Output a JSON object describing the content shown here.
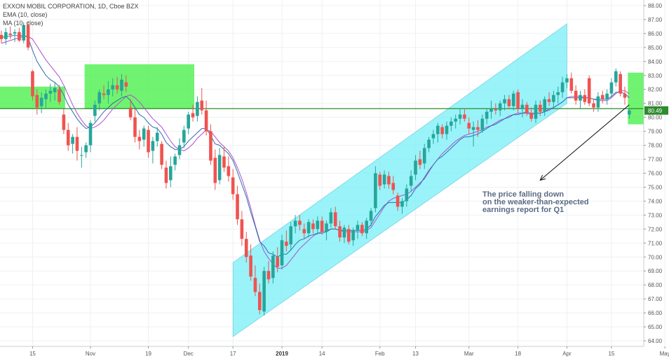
{
  "chart_data": {
    "type": "candlestick",
    "title": "EXXON MOBIL CORPORATION, 1D, Cboe BZX",
    "indicators": [
      {
        "label": "EMA (10, close)",
        "color": "#2f6fa8"
      },
      {
        "label": "MA (10, close)",
        "color": "#b14fd1"
      }
    ],
    "y_ticks": [
      "64.00",
      "65.00",
      "66.00",
      "67.00",
      "68.00",
      "69.00",
      "70.00",
      "71.00",
      "72.00",
      "73.00",
      "74.00",
      "75.00",
      "76.00",
      "77.00",
      "78.00",
      "79.00",
      "80.00",
      "81.00",
      "82.00",
      "83.00",
      "84.00",
      "85.00",
      "86.00",
      "87.00",
      "88.00"
    ],
    "ylim": [
      63.6,
      88.4
    ],
    "x_ticks": [
      {
        "label": "15",
        "index": 7
      },
      {
        "label": "Nov",
        "index": 20
      },
      {
        "label": "19",
        "index": 33
      },
      {
        "label": "Dec",
        "index": 42
      },
      {
        "label": "17",
        "index": 52
      },
      {
        "label": "2019",
        "index": 63,
        "bold": true
      },
      {
        "label": "14",
        "index": 72
      },
      {
        "label": "Feb",
        "index": 85
      },
      {
        "label": "13",
        "index": 93
      },
      {
        "label": "Mar",
        "index": 105
      },
      {
        "label": "18",
        "index": 116
      },
      {
        "label": "Apr",
        "index": 127
      },
      {
        "label": "15",
        "index": 137
      },
      {
        "label": "May",
        "index": 149
      }
    ],
    "candles": [
      [
        85.9,
        86.2,
        85.3,
        85.6
      ],
      [
        85.6,
        86.4,
        85.2,
        86.1
      ],
      [
        86.0,
        86.5,
        85.6,
        85.9
      ],
      [
        86.0,
        86.3,
        85.4,
        86.1
      ],
      [
        86.1,
        86.4,
        85.4,
        85.5
      ],
      [
        85.5,
        86.8,
        85.3,
        86.6
      ],
      [
        86.6,
        86.9,
        84.8,
        85.0
      ],
      [
        83.3,
        83.4,
        81.2,
        81.5
      ],
      [
        81.6,
        82.0,
        80.2,
        80.7
      ],
      [
        80.8,
        81.8,
        80.3,
        81.4
      ],
      [
        81.3,
        82.0,
        80.7,
        81.7
      ],
      [
        81.7,
        82.4,
        81.1,
        81.9
      ],
      [
        81.8,
        82.5,
        81.2,
        82.1
      ],
      [
        82.0,
        82.3,
        80.9,
        81.1
      ],
      [
        80.2,
        80.6,
        78.8,
        79.1
      ],
      [
        79.1,
        79.6,
        77.6,
        78.0
      ],
      [
        78.1,
        78.8,
        77.4,
        78.6
      ],
      [
        78.6,
        79.3,
        76.9,
        77.6
      ],
      [
        77.3,
        77.9,
        76.4,
        77.3
      ],
      [
        77.5,
        78.2,
        77.1,
        78.0
      ],
      [
        78.0,
        79.8,
        77.5,
        79.6
      ],
      [
        80.1,
        81.2,
        79.7,
        80.9
      ],
      [
        81.0,
        82.0,
        80.5,
        81.8
      ],
      [
        81.7,
        82.3,
        81.3,
        81.6
      ],
      [
        81.6,
        82.6,
        81.0,
        82.0
      ],
      [
        82.0,
        82.8,
        81.5,
        82.3
      ],
      [
        82.3,
        82.9,
        81.7,
        82.0
      ],
      [
        81.9,
        83.1,
        81.5,
        82.7
      ],
      [
        82.5,
        83.0,
        81.8,
        82.2
      ],
      [
        80.7,
        81.3,
        79.8,
        80.0
      ],
      [
        80.0,
        80.6,
        78.2,
        78.6
      ],
      [
        78.6,
        79.1,
        77.7,
        78.3
      ],
      [
        78.4,
        79.4,
        77.9,
        79.2
      ],
      [
        79.1,
        79.4,
        77.1,
        77.5
      ],
      [
        77.6,
        78.6,
        76.7,
        78.3
      ],
      [
        78.3,
        79.3,
        77.9,
        78.9
      ],
      [
        78.1,
        78.3,
        76.3,
        76.6
      ],
      [
        76.4,
        76.9,
        74.9,
        75.3
      ],
      [
        75.5,
        77.2,
        75.0,
        76.5
      ],
      [
        76.6,
        77.4,
        76.2,
        77.2
      ],
      [
        77.3,
        78.5,
        77.0,
        78.0
      ],
      [
        78.2,
        79.4,
        77.8,
        79.1
      ],
      [
        79.2,
        80.4,
        78.8,
        80.2
      ],
      [
        80.3,
        80.9,
        79.7,
        80.0
      ],
      [
        80.1,
        81.5,
        79.7,
        81.1
      ],
      [
        81.2,
        82.1,
        80.2,
        80.5
      ],
      [
        80.5,
        81.2,
        78.7,
        79.0
      ],
      [
        79.0,
        79.5,
        76.6,
        76.9
      ],
      [
        77.1,
        77.7,
        74.8,
        75.3
      ],
      [
        75.5,
        77.8,
        75.2,
        77.3
      ],
      [
        77.2,
        77.9,
        76.1,
        76.4
      ],
      [
        76.5,
        77.2,
        75.4,
        75.8
      ],
      [
        75.7,
        76.3,
        74.1,
        74.5
      ],
      [
        74.5,
        75.1,
        72.3,
        72.7
      ],
      [
        72.7,
        73.3,
        70.8,
        71.3
      ],
      [
        71.3,
        71.8,
        69.6,
        70.0
      ],
      [
        70.1,
        70.9,
        68.3,
        68.6
      ],
      [
        68.5,
        69.4,
        67.2,
        67.5
      ],
      [
        67.5,
        68.1,
        65.9,
        66.2
      ],
      [
        66.1,
        69.3,
        65.8,
        69.0
      ],
      [
        69.0,
        69.7,
        68.1,
        68.4
      ],
      [
        68.5,
        70.4,
        68.1,
        70.1
      ],
      [
        70.0,
        70.7,
        68.9,
        69.3
      ],
      [
        69.4,
        71.6,
        69.1,
        71.2
      ],
      [
        71.1,
        71.9,
        70.4,
        70.8
      ],
      [
        70.9,
        72.5,
        70.5,
        72.2
      ],
      [
        72.2,
        73.0,
        71.7,
        72.6
      ],
      [
        72.6,
        73.0,
        71.9,
        72.3
      ],
      [
        72.0,
        72.4,
        71.3,
        71.7
      ],
      [
        71.7,
        72.7,
        71.4,
        72.5
      ],
      [
        72.4,
        72.7,
        71.7,
        72.0
      ],
      [
        72.0,
        72.9,
        71.6,
        72.6
      ],
      [
        72.6,
        72.9,
        71.6,
        71.8
      ],
      [
        71.8,
        72.6,
        71.2,
        72.4
      ],
      [
        72.4,
        73.5,
        72.1,
        73.2
      ],
      [
        73.2,
        73.6,
        72.0,
        72.2
      ],
      [
        72.2,
        72.6,
        71.1,
        71.4
      ],
      [
        71.4,
        72.3,
        71.0,
        72.1
      ],
      [
        72.0,
        72.3,
        70.9,
        71.1
      ],
      [
        71.2,
        72.1,
        70.8,
        71.9
      ],
      [
        71.9,
        72.6,
        71.3,
        72.3
      ],
      [
        72.3,
        72.5,
        71.5,
        71.7
      ],
      [
        71.7,
        72.8,
        71.3,
        72.6
      ],
      [
        72.6,
        73.5,
        72.2,
        73.3
      ],
      [
        73.5,
        76.5,
        73.2,
        76.0
      ],
      [
        75.9,
        76.1,
        74.8,
        75.1
      ],
      [
        75.2,
        76.2,
        74.9,
        75.9
      ],
      [
        75.8,
        76.1,
        74.9,
        75.2
      ],
      [
        75.3,
        75.8,
        74.5,
        74.8
      ],
      [
        74.4,
        74.6,
        73.3,
        73.6
      ],
      [
        73.6,
        74.2,
        73.1,
        74.0
      ],
      [
        74.0,
        75.2,
        73.6,
        74.9
      ],
      [
        75.1,
        76.2,
        74.7,
        75.8
      ],
      [
        75.9,
        77.3,
        75.5,
        76.9
      ],
      [
        77.0,
        77.6,
        76.3,
        76.6
      ],
      [
        76.7,
        78.1,
        76.3,
        77.8
      ],
      [
        77.8,
        78.6,
        77.5,
        78.4
      ],
      [
        78.5,
        79.1,
        78.1,
        78.8
      ],
      [
        78.8,
        79.6,
        78.2,
        79.4
      ],
      [
        79.3,
        79.5,
        78.5,
        78.8
      ],
      [
        78.8,
        79.7,
        78.4,
        79.4
      ],
      [
        79.4,
        80.0,
        79.0,
        79.7
      ],
      [
        79.7,
        80.2,
        79.2,
        79.9
      ],
      [
        79.9,
        80.6,
        79.5,
        80.2
      ],
      [
        80.2,
        80.6,
        79.7,
        79.9
      ],
      [
        79.6,
        80.0,
        78.8,
        79.2
      ],
      [
        79.1,
        79.7,
        77.9,
        79.3
      ],
      [
        79.3,
        79.8,
        78.6,
        79.1
      ],
      [
        79.1,
        80.2,
        78.9,
        79.9
      ],
      [
        79.9,
        80.6,
        79.5,
        80.4
      ],
      [
        80.4,
        81.2,
        79.9,
        80.6
      ],
      [
        80.6,
        81.0,
        80.2,
        80.5
      ],
      [
        80.5,
        81.2,
        80.1,
        81.0
      ],
      [
        81.0,
        81.6,
        80.5,
        81.3
      ],
      [
        81.3,
        81.6,
        80.6,
        80.8
      ],
      [
        80.8,
        81.9,
        80.5,
        81.7
      ],
      [
        81.8,
        82.0,
        80.3,
        80.6
      ],
      [
        80.6,
        81.3,
        80.0,
        80.9
      ],
      [
        80.9,
        81.1,
        80.1,
        80.3
      ],
      [
        80.3,
        80.7,
        79.7,
        79.9
      ],
      [
        79.9,
        81.2,
        79.6,
        80.9
      ],
      [
        80.9,
        81.2,
        80.1,
        80.4
      ],
      [
        80.4,
        81.5,
        80.1,
        81.3
      ],
      [
        81.3,
        81.8,
        80.8,
        81.1
      ],
      [
        81.1,
        81.9,
        80.7,
        81.6
      ],
      [
        81.6,
        82.2,
        81.0,
        81.8
      ],
      [
        81.8,
        82.9,
        81.4,
        82.5
      ],
      [
        82.5,
        83.1,
        82.1,
        82.8
      ],
      [
        82.8,
        83.2,
        81.7,
        81.9
      ],
      [
        81.9,
        82.3,
        80.9,
        81.2
      ],
      [
        81.2,
        81.9,
        80.6,
        81.6
      ],
      [
        81.6,
        82.0,
        80.9,
        81.1
      ],
      [
        82.8,
        83.0,
        80.8,
        81.0
      ],
      [
        81.0,
        81.3,
        80.4,
        80.7
      ],
      [
        80.7,
        81.8,
        80.4,
        81.5
      ],
      [
        81.6,
        81.9,
        81.0,
        81.3
      ],
      [
        81.3,
        82.0,
        80.9,
        81.7
      ],
      [
        81.7,
        82.8,
        81.4,
        82.5
      ],
      [
        82.5,
        83.5,
        82.2,
        83.3
      ],
      [
        83.1,
        83.3,
        81.5,
        81.7
      ],
      [
        81.7,
        82.2,
        80.9,
        81.4
      ],
      [
        80.2,
        80.6,
        79.9,
        80.5
      ]
    ],
    "ema": [
      85.7,
      85.8,
      85.8,
      85.9,
      85.8,
      85.9,
      85.7,
      84.8,
      84.0,
      83.5,
      83.0,
      82.7,
      82.5,
      82.2,
      81.6,
      80.9,
      80.4,
      79.9,
      79.5,
      79.2,
      79.3,
      79.6,
      80.0,
      80.4,
      80.7,
      81.0,
      81.2,
      81.4,
      81.5,
      81.2,
      80.7,
      80.2,
      80.0,
      79.6,
      79.3,
      79.2,
      78.8,
      78.2,
      77.9,
      77.7,
      77.7,
      77.9,
      78.3,
      78.6,
      78.9,
      79.2,
      79.2,
      78.7,
      78.1,
      78.0,
      77.7,
      77.4,
      76.9,
      76.1,
      75.2,
      74.3,
      73.2,
      72.2,
      71.1,
      70.8,
      70.3,
      70.2,
      70.0,
      70.2,
      70.2,
      70.5,
      70.9,
      71.2,
      71.3,
      71.5,
      71.6,
      71.7,
      71.7,
      71.8,
      72.0,
      72.0,
      71.9,
      71.9,
      71.9,
      71.9,
      71.9,
      71.9,
      72.0,
      72.3,
      72.9,
      73.3,
      73.7,
      73.9,
      73.9,
      73.9,
      73.9,
      74.1,
      74.4,
      74.9,
      75.2,
      75.7,
      76.2,
      76.6,
      77.0,
      77.2,
      77.5,
      77.8,
      78.1,
      78.4,
      78.6,
      78.6,
      78.7,
      78.8,
      79.0,
      79.2,
      79.4,
      79.5,
      79.7,
      79.9,
      80.0,
      80.2,
      80.2,
      80.3,
      80.3,
      80.2,
      80.3,
      80.3,
      80.4,
      80.6,
      80.7,
      80.9,
      81.1,
      81.4,
      81.4,
      81.4,
      81.4,
      81.4,
      81.4,
      81.3,
      81.3,
      81.3,
      81.3,
      81.5,
      81.8,
      81.8,
      81.7,
      81.4
    ],
    "ma": [
      85.3,
      85.4,
      85.5,
      85.6,
      85.7,
      85.8,
      85.8,
      85.6,
      85.1,
      84.6,
      84.1,
      83.7,
      83.3,
      82.9,
      82.3,
      81.6,
      80.9,
      80.3,
      79.8,
      79.4,
      79.2,
      79.3,
      79.5,
      79.8,
      80.2,
      80.6,
      80.9,
      81.2,
      81.5,
      81.6,
      81.4,
      81.1,
      80.7,
      80.3,
      79.9,
      79.6,
      79.3,
      78.8,
      78.3,
      77.9,
      77.7,
      77.6,
      77.8,
      78.1,
      78.5,
      78.8,
      79.1,
      79.0,
      78.6,
      78.2,
      77.9,
      77.6,
      77.1,
      76.4,
      75.6,
      74.6,
      73.5,
      72.3,
      71.2,
      70.4,
      69.9,
      69.5,
      69.2,
      69.2,
      69.4,
      69.8,
      70.2,
      70.6,
      70.9,
      71.2,
      71.5,
      71.7,
      71.8,
      71.9,
      72.0,
      72.0,
      71.9,
      71.8,
      71.8,
      71.8,
      71.8,
      71.8,
      71.9,
      72.1,
      72.6,
      73.1,
      73.6,
      74.0,
      74.2,
      74.3,
      74.4,
      74.5,
      74.7,
      75.0,
      75.3,
      75.6,
      76.1,
      76.6,
      77.0,
      77.4,
      77.7,
      78.0,
      78.3,
      78.5,
      78.7,
      78.8,
      78.9,
      79.0,
      79.1,
      79.3,
      79.4,
      79.6,
      79.8,
      79.9,
      80.1,
      80.2,
      80.3,
      80.3,
      80.4,
      80.3,
      80.3,
      80.3,
      80.4,
      80.5,
      80.7,
      80.9,
      81.1,
      81.4,
      81.5,
      81.5,
      81.5,
      81.4,
      81.4,
      81.3,
      81.2,
      81.2,
      81.2,
      81.4,
      81.7,
      81.9,
      81.9,
      81.7
    ],
    "horizontal_line": {
      "value": 80.62,
      "color": "#2e8b2e"
    },
    "channel": {
      "start_index": 52,
      "end_index": 127,
      "lower_start": 64.3,
      "lower_end": 81.0,
      "upper_start": 69.6,
      "upper_end": 86.7,
      "color": "#7ff0f8"
    },
    "highlight_boxes": [
      {
        "start_index": 0,
        "end_index": 14,
        "low": 80.6,
        "high": 82.2
      },
      {
        "start_index": 19,
        "end_index": 43,
        "low": 80.6,
        "high": 83.8
      },
      {
        "start_index": 141,
        "end_index": 144,
        "low": 79.5,
        "high": 83.2
      }
    ],
    "current_price": {
      "label": "80.49",
      "value": 80.49
    },
    "annotation": {
      "lines": [
        "The price falling down",
        "on the weaker-than-expected",
        "earnings report for Q1"
      ],
      "arrows": [
        {
          "from_index": 141,
          "from_value": 80.9,
          "to_index": 121,
          "to_value": 75.5
        }
      ]
    },
    "colors": {
      "up": "#26a69a",
      "down": "#ef5350",
      "ema": "#2f6fa8",
      "ma": "#b14fd1",
      "highlight": "#33ee33",
      "price_tag": "#2e8b2e"
    }
  }
}
